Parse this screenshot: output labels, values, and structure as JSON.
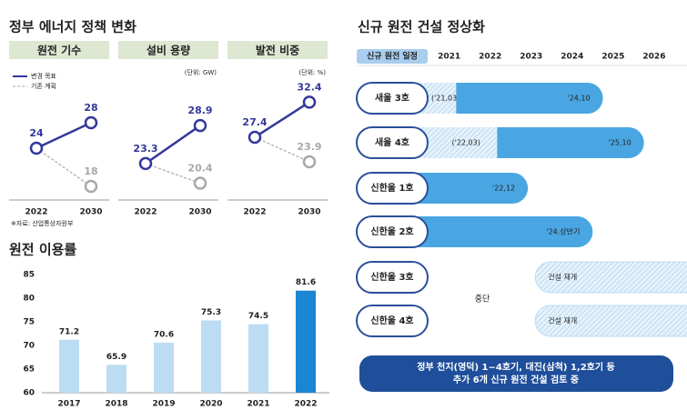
{
  "policy": {
    "title": "정부 에너지 정책 변화",
    "source": "※자료: 산업통상자원부"
  },
  "chart_data": [
    {
      "type": "line",
      "title": "원전 기수",
      "categories": [
        "2022",
        "2030"
      ],
      "ylim": [
        17,
        33
      ],
      "series": [
        {
          "name": "변경 목표",
          "color": "#34389a",
          "values": [
            24,
            28
          ]
        },
        {
          "name": "기존 계획",
          "color": "#a8a8a8",
          "dashed": true,
          "values": [
            24,
            18
          ]
        }
      ]
    },
    {
      "type": "line",
      "title": "설비 용량",
      "unit": "(단위: GW)",
      "categories": [
        "2022",
        "2030"
      ],
      "ylim": [
        19,
        34
      ],
      "series": [
        {
          "color": "#34389a",
          "values": [
            23.3,
            28.9
          ]
        },
        {
          "color": "#a8a8a8",
          "dashed": true,
          "values": [
            23.3,
            20.4
          ]
        }
      ]
    },
    {
      "type": "line",
      "title": "발전 비중",
      "unit": "(단위: %)",
      "categories": [
        "2022",
        "2030"
      ],
      "ylim": [
        19.5,
        34
      ],
      "series": [
        {
          "color": "#34389a",
          "values": [
            27.4,
            32.4
          ]
        },
        {
          "color": "#a8a8a8",
          "dashed": true,
          "values": [
            27.4,
            23.9
          ]
        }
      ]
    },
    {
      "type": "bar",
      "title": "원전 이용률",
      "categories": [
        "2017",
        "2018",
        "2019",
        "2020",
        "2021",
        "2022"
      ],
      "values": [
        71.2,
        65.9,
        70.6,
        75.3,
        74.5,
        81.6
      ],
      "colors": [
        "#bcdcf3",
        "#bcdcf3",
        "#bcdcf3",
        "#bcdcf3",
        "#bcdcf3",
        "#1b86d3"
      ],
      "ylim": [
        60,
        85
      ],
      "yticks": [
        60,
        65,
        70,
        75,
        80,
        85
      ],
      "grid": false
    },
    {
      "type": "gantt",
      "title": "신규 원전 건설 정상화",
      "header": "신규 원전 일정",
      "xlim": [
        2018.7,
        2026.8
      ],
      "xticks": [
        2021,
        2022,
        2023,
        2024,
        2025,
        2026
      ],
      "color": "#4aa6e2",
      "pause_label": "중단",
      "rows": [
        {
          "name": "새울 3호",
          "start": 2021.17,
          "start_label": "('21,03)",
          "end": 2024.75,
          "end_label": "'24,10"
        },
        {
          "name": "새울 4호",
          "start": 2022.17,
          "start_label": "('22,03)",
          "end": 2025.75,
          "end_label": "'25,10"
        },
        {
          "name": "신한울 1호",
          "end": 2022.92,
          "end_label": "'22,12"
        },
        {
          "name": "신한울 2호",
          "end": 2024.5,
          "end_label": "'24.상반기"
        },
        {
          "name": "신한울 3호",
          "start": 2023.1,
          "start_label": "건설 재개"
        },
        {
          "name": "신한울 4호",
          "start": 2023.1,
          "start_label": "건설 재개"
        }
      ]
    }
  ],
  "footnote": [
    "정부 천지(영덕) 1~4호기, 대진(삼척) 1,2호기 등",
    "추가 6개 신규 원전 건설 검토 중"
  ]
}
